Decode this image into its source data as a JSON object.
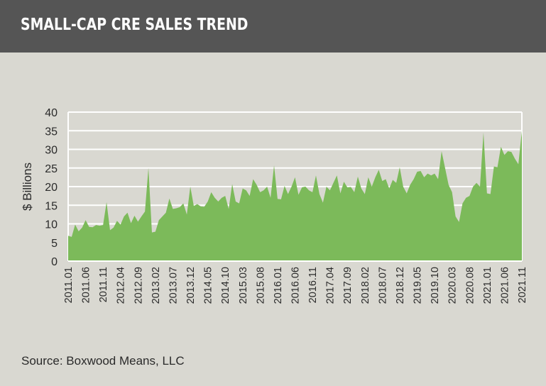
{
  "header": {
    "title": "SMALL-CAP CRE SALES TREND"
  },
  "source": "Source: Boxwood Means, LLC",
  "colors": {
    "header_bg": "#555555",
    "background": "#d9d8d1",
    "area_fill": "#7cba5a",
    "grid": "#ffffff"
  },
  "chart_data": {
    "type": "area",
    "title": "SMALL-CAP CRE SALES TREND",
    "xlabel": "",
    "ylabel": "$ Billions",
    "ylim": [
      0,
      40
    ],
    "yticks": [
      0,
      5,
      10,
      15,
      20,
      25,
      30,
      35,
      40
    ],
    "grid": true,
    "xtick_labels": [
      "2011.01",
      "2011.06",
      "2011.11",
      "2012.04",
      "2012.09",
      "2013.02",
      "2013.07",
      "2013.12",
      "2014.05",
      "2014.10",
      "2015.03",
      "2015.08",
      "2016.01",
      "2016.06",
      "2016.11",
      "2017.04",
      "2017.09",
      "2018.02",
      "2018.07",
      "2018.12",
      "2019.05",
      "2019.10",
      "2020.03",
      "2020.08",
      "2021.01",
      "2021.06",
      "2021.11"
    ],
    "x_start": "2011.01",
    "x_end": "2021.11",
    "values": [
      6.8,
      6.5,
      9.8,
      8,
      9,
      11,
      9.2,
      9.1,
      9.7,
      9.5,
      9.7,
      15.8,
      8.3,
      9,
      10.8,
      9.8,
      12,
      13,
      10.2,
      12.2,
      10.6,
      12,
      13.3,
      25,
      7.7,
      7.9,
      11,
      12,
      13,
      16.8,
      14,
      14.2,
      14.5,
      15.5,
      12.5,
      20,
      14.8,
      15.3,
      14.7,
      14.6,
      16,
      18.5,
      17,
      16,
      17,
      17.5,
      14,
      20.7,
      16,
      15.5,
      19.5,
      19,
      17.5,
      22,
      20.5,
      18.5,
      19,
      20,
      17,
      25.7,
      16.7,
      16.6,
      20.2,
      18,
      20,
      22.5,
      17.8,
      19.8,
      20,
      19,
      18.5,
      23,
      18,
      15.7,
      20,
      19,
      21,
      23,
      18.2,
      21.3,
      19.8,
      19.9,
      18.5,
      22.7,
      19.5,
      18,
      22.5,
      20,
      22.5,
      24.5,
      21.5,
      22,
      19.5,
      21.8,
      21,
      25.2,
      20,
      18.2,
      20.5,
      22,
      24,
      24.2,
      22.5,
      23.5,
      23,
      23.5,
      22,
      29.5,
      25,
      20.5,
      18.5,
      12,
      10.5,
      15.5,
      17,
      17.5,
      20,
      21,
      20,
      34.5,
      18.2,
      18,
      25.4,
      25.2,
      30.7,
      28.5,
      29.5,
      29.3,
      27.5,
      26,
      35
    ]
  }
}
